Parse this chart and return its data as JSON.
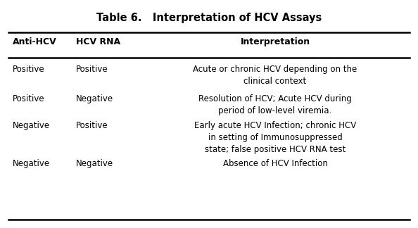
{
  "title": "Table 6.   Interpretation of HCV Assays",
  "col_headers": [
    "Anti-HCV",
    "HCV RNA",
    "Interpretation"
  ],
  "rows": [
    {
      "anti_hcv": "Positive",
      "hcv_rna": "Positive",
      "interpretation": "Acute or chronic HCV depending on the\nclinical context"
    },
    {
      "anti_hcv": "Positive",
      "hcv_rna": "Negative",
      "interpretation": "Resolution of HCV; Acute HCV during\nperiod of low-level viremia."
    },
    {
      "anti_hcv": "Negative",
      "hcv_rna": "Positive",
      "interpretation": "Early acute HCV Infection; chronic HCV\nin setting of Immunosuppressed\nstate; false positive HCV RNA test"
    },
    {
      "anti_hcv": "Negative",
      "hcv_rna": "Negative",
      "interpretation": "Absence of HCV Infection"
    }
  ],
  "background_color": "#ffffff",
  "text_color": "#000000",
  "line_color": "#000000",
  "title_fontsize": 10.5,
  "header_fontsize": 9.0,
  "body_fontsize": 8.5,
  "fig_width": 5.94,
  "fig_height": 3.24,
  "dpi": 100
}
